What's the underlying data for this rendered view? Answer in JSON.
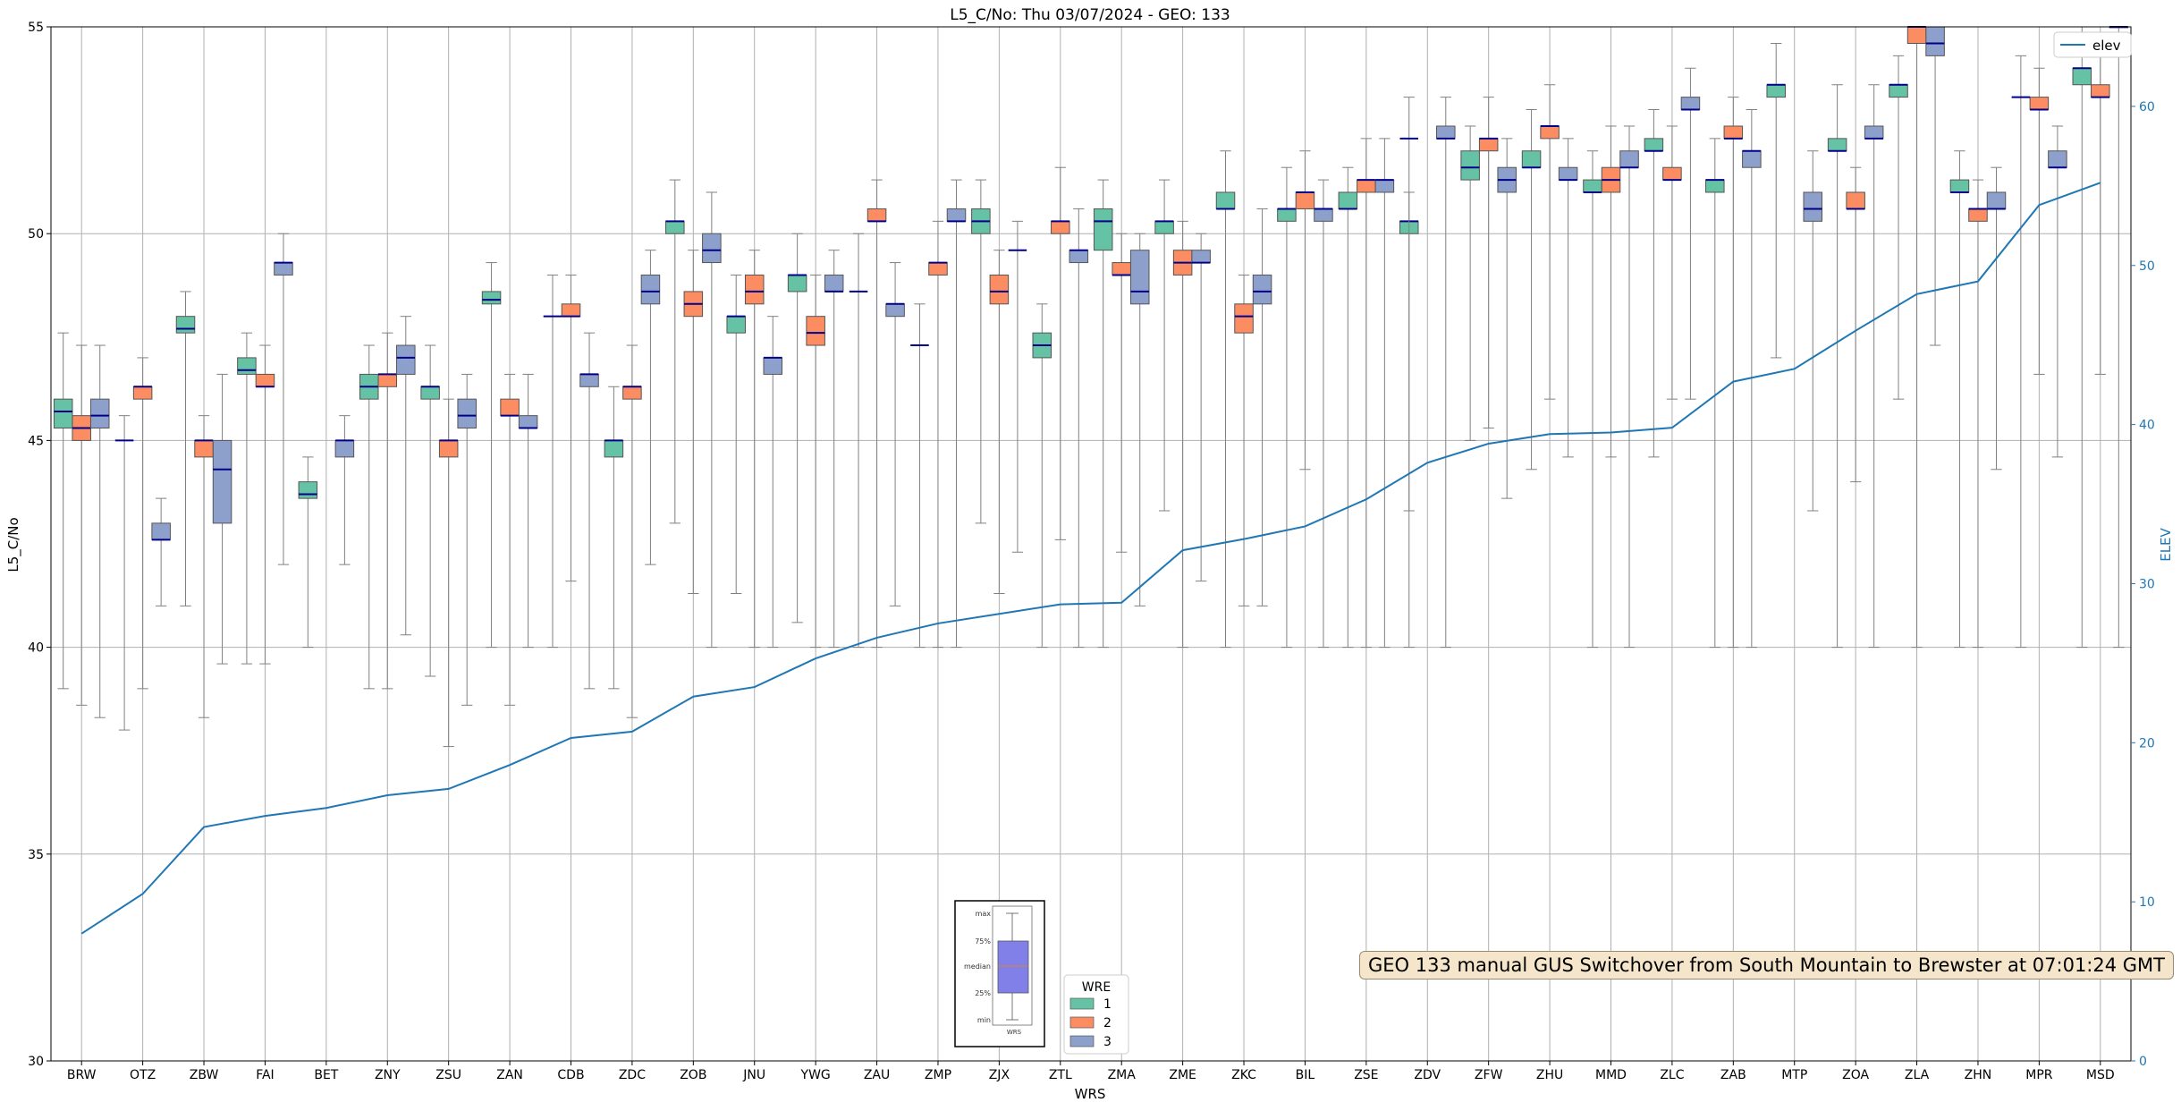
{
  "chart_data": {
    "type": "box",
    "title": "L5_C/No: Thu 03/07/2024 - GEO: 133",
    "xlabel": "WRS",
    "ylabel": "L5_C/No",
    "y2label": "ELEV",
    "ylim": [
      30,
      55
    ],
    "y2lim": [
      0,
      65
    ],
    "yticks": [
      30,
      35,
      40,
      45,
      50,
      55
    ],
    "y2ticks": [
      0,
      10,
      20,
      30,
      40,
      50,
      60
    ],
    "grid": true,
    "categories": [
      "BRW",
      "OTZ",
      "ZBW",
      "FAI",
      "BET",
      "ZNY",
      "ZSU",
      "ZAN",
      "CDB",
      "ZDC",
      "ZOB",
      "JNU",
      "YWG",
      "ZAU",
      "ZMP",
      "ZJX",
      "ZTL",
      "ZMA",
      "ZME",
      "ZKC",
      "BIL",
      "ZSE",
      "ZDV",
      "ZFW",
      "ZHU",
      "MMD",
      "ZLC",
      "ZAB",
      "MTP",
      "ZOA",
      "ZLA",
      "ZHN",
      "MPR",
      "MSD"
    ],
    "legend": {
      "title": "WRE",
      "entries": [
        "1",
        "2",
        "3"
      ],
      "placement": "lower-center"
    },
    "line_legend": {
      "label": "elev",
      "placement": "top-right"
    },
    "colors": {
      "wre1": "#66c2a5",
      "wre2": "#fc8d62",
      "wre3": "#8da0cb",
      "median": "#00008b",
      "elev": "#1f77b4",
      "whisker": "#808080",
      "note_bg": "#f5e6cb"
    },
    "series": [
      {
        "name": "1",
        "boxes": [
          {
            "min": 39.0,
            "q1": 45.3,
            "median": 45.7,
            "q3": 46.0,
            "max": 47.6
          },
          null,
          {
            "min": 41.0,
            "q1": 47.6,
            "median": 47.7,
            "q3": 48.0,
            "max": 48.6
          },
          {
            "min": 39.6,
            "q1": 46.6,
            "median": 46.7,
            "q3": 47.0,
            "max": 47.6
          },
          {
            "min": 40.0,
            "q1": 43.6,
            "median": 43.7,
            "q3": 44.0,
            "max": 44.6
          },
          {
            "min": 39.0,
            "q1": 46.0,
            "median": 46.3,
            "q3": 46.6,
            "max": 47.3
          },
          {
            "min": 39.3,
            "q1": 46.0,
            "median": 46.3,
            "q3": 46.3,
            "max": 47.3
          },
          {
            "min": 40.0,
            "q1": 48.3,
            "median": 48.4,
            "q3": 48.6,
            "max": 49.3
          },
          null,
          {
            "min": 39.0,
            "q1": 44.6,
            "median": 45.0,
            "q3": 45.0,
            "max": 46.3
          },
          {
            "min": 43.0,
            "q1": 50.0,
            "median": 50.3,
            "q3": 50.3,
            "max": 51.3
          },
          {
            "min": 41.3,
            "q1": 47.6,
            "median": 48.0,
            "q3": 48.0,
            "max": 49.0
          },
          {
            "min": 40.6,
            "q1": 48.6,
            "median": 49.0,
            "q3": 49.0,
            "max": 50.0
          },
          null,
          null,
          {
            "min": 43.0,
            "q1": 50.0,
            "median": 50.3,
            "q3": 50.6,
            "max": 51.3
          },
          {
            "min": 40.0,
            "q1": 47.0,
            "median": 47.3,
            "q3": 47.6,
            "max": 48.3
          },
          {
            "min": 40.0,
            "q1": 49.6,
            "median": 50.3,
            "q3": 50.6,
            "max": 51.3
          },
          {
            "min": 43.3,
            "q1": 50.0,
            "median": 50.3,
            "q3": 50.3,
            "max": 51.3
          },
          {
            "min": 40.0,
            "q1": 50.6,
            "median": 50.6,
            "q3": 51.0,
            "max": 52.0
          },
          {
            "min": 40.0,
            "q1": 50.3,
            "median": 50.6,
            "q3": 50.6,
            "max": 51.6
          },
          {
            "min": 40.0,
            "q1": 50.6,
            "median": 50.6,
            "q3": 51.0,
            "max": 51.6
          },
          {
            "min": 43.3,
            "q1": 50.0,
            "median": 50.3,
            "q3": 50.3,
            "max": 51.0
          },
          {
            "min": 45.0,
            "q1": 51.3,
            "median": 51.6,
            "q3": 52.0,
            "max": 52.6
          },
          {
            "min": 44.3,
            "q1": 51.6,
            "median": 51.6,
            "q3": 52.0,
            "max": 53.0
          },
          {
            "min": 40.0,
            "q1": 51.0,
            "median": 51.0,
            "q3": 51.3,
            "max": 52.0
          },
          {
            "min": 44.6,
            "q1": 52.0,
            "median": 52.0,
            "q3": 52.3,
            "max": 53.0
          },
          {
            "min": 40.0,
            "q1": 51.0,
            "median": 51.3,
            "q3": 51.3,
            "max": 52.3
          },
          {
            "min": 47.0,
            "q1": 53.3,
            "median": 53.6,
            "q3": 53.6,
            "max": 54.6
          },
          {
            "min": 40.0,
            "q1": 52.0,
            "median": 52.0,
            "q3": 52.3,
            "max": 53.6
          },
          {
            "min": 46.0,
            "q1": 53.3,
            "median": 53.6,
            "q3": 53.6,
            "max": 54.3
          },
          {
            "min": 40.0,
            "q1": 51.0,
            "median": 51.0,
            "q3": 51.3,
            "max": 52.0
          },
          null,
          {
            "min": 40.0,
            "q1": 53.6,
            "median": 54.0,
            "q3": 54.0,
            "max": 55.0
          }
        ]
      },
      {
        "name": "2",
        "boxes": [
          {
            "min": 38.6,
            "q1": 45.0,
            "median": 45.3,
            "q3": 45.6,
            "max": 47.3
          },
          {
            "min": 39.0,
            "q1": 46.0,
            "median": 46.3,
            "q3": 46.3,
            "max": 47.0
          },
          {
            "min": 38.3,
            "q1": 44.6,
            "median": 45.0,
            "q3": 45.0,
            "max": 45.6
          },
          {
            "min": 39.6,
            "q1": 46.3,
            "median": 46.3,
            "q3": 46.6,
            "max": 47.3
          },
          null,
          {
            "min": 39.0,
            "q1": 46.3,
            "median": 46.6,
            "q3": 46.6,
            "max": 47.6
          },
          {
            "min": 37.6,
            "q1": 44.6,
            "median": 45.0,
            "q3": 45.0,
            "max": 46.0
          },
          {
            "min": 38.6,
            "q1": 45.6,
            "median": 45.6,
            "q3": 46.0,
            "max": 46.6
          },
          {
            "min": 41.6,
            "q1": 48.0,
            "median": 48.0,
            "q3": 48.3,
            "max": 49.0
          },
          {
            "min": 38.3,
            "q1": 46.0,
            "median": 46.3,
            "q3": 46.3,
            "max": 47.3
          },
          {
            "min": 41.3,
            "q1": 48.0,
            "median": 48.3,
            "q3": 48.6,
            "max": 49.6
          },
          {
            "min": 40.0,
            "q1": 48.3,
            "median": 48.6,
            "q3": 49.0,
            "max": 49.6
          },
          {
            "min": 40.0,
            "q1": 47.3,
            "median": 47.6,
            "q3": 48.0,
            "max": 49.0
          },
          {
            "min": 40.0,
            "q1": 50.3,
            "median": 50.3,
            "q3": 50.6,
            "max": 51.3
          },
          {
            "min": 40.0,
            "q1": 49.0,
            "median": 49.3,
            "q3": 49.3,
            "max": 50.3
          },
          {
            "min": 41.3,
            "q1": 48.3,
            "median": 48.6,
            "q3": 49.0,
            "max": 49.6
          },
          {
            "min": 42.6,
            "q1": 50.0,
            "median": 50.3,
            "q3": 50.3,
            "max": 51.6
          },
          {
            "min": 42.3,
            "q1": 49.0,
            "median": 49.0,
            "q3": 49.3,
            "max": 50.0
          },
          {
            "min": 40.0,
            "q1": 49.0,
            "median": 49.3,
            "q3": 49.6,
            "max": 50.3
          },
          {
            "min": 41.0,
            "q1": 47.6,
            "median": 48.0,
            "q3": 48.3,
            "max": 49.0
          },
          {
            "min": 44.3,
            "q1": 50.6,
            "median": 51.0,
            "q3": 51.0,
            "max": 52.0
          },
          {
            "min": 40.0,
            "q1": 51.0,
            "median": 51.3,
            "q3": 51.3,
            "max": 52.3
          },
          null,
          {
            "min": 45.3,
            "q1": 52.0,
            "median": 52.3,
            "q3": 52.3,
            "max": 53.3
          },
          {
            "min": 46.0,
            "q1": 52.3,
            "median": 52.6,
            "q3": 52.6,
            "max": 53.6
          },
          {
            "min": 44.6,
            "q1": 51.0,
            "median": 51.3,
            "q3": 51.6,
            "max": 52.6
          },
          {
            "min": 46.0,
            "q1": 51.3,
            "median": 51.3,
            "q3": 51.6,
            "max": 52.6
          },
          {
            "min": 40.0,
            "q1": 52.3,
            "median": 52.3,
            "q3": 52.6,
            "max": 53.3
          },
          null,
          {
            "min": 44.0,
            "q1": 50.6,
            "median": 50.6,
            "q3": 51.0,
            "max": 51.6
          },
          {
            "min": 40.0,
            "q1": 54.6,
            "median": 55.0,
            "q3": 55.0,
            "max": 55.0
          },
          {
            "min": 40.0,
            "q1": 50.3,
            "median": 50.6,
            "q3": 50.6,
            "max": 51.3
          },
          {
            "min": 46.6,
            "q1": 53.0,
            "median": 53.0,
            "q3": 53.3,
            "max": 54.0
          },
          {
            "min": 46.6,
            "q1": 53.3,
            "median": 53.3,
            "q3": 53.6,
            "max": 54.6
          }
        ]
      },
      {
        "name": "3",
        "boxes": [
          {
            "min": 38.3,
            "q1": 45.3,
            "median": 45.6,
            "q3": 46.0,
            "max": 47.3
          },
          {
            "min": 41.0,
            "q1": 42.6,
            "median": 42.6,
            "q3": 43.0,
            "max": 43.6
          },
          {
            "min": 39.6,
            "q1": 43.0,
            "median": 44.3,
            "q3": 45.0,
            "max": 46.6
          },
          {
            "min": 42.0,
            "q1": 49.0,
            "median": 49.3,
            "q3": 49.3,
            "max": 50.0
          },
          {
            "min": 42.0,
            "q1": 44.6,
            "median": 45.0,
            "q3": 45.0,
            "max": 45.6
          },
          {
            "min": 40.3,
            "q1": 46.6,
            "median": 47.0,
            "q3": 47.3,
            "max": 48.0
          },
          {
            "min": 38.6,
            "q1": 45.3,
            "median": 45.6,
            "q3": 46.0,
            "max": 46.6
          },
          {
            "min": 40.0,
            "q1": 45.3,
            "median": 45.3,
            "q3": 45.6,
            "max": 46.6
          },
          {
            "min": 39.0,
            "q1": 46.3,
            "median": 46.6,
            "q3": 46.6,
            "max": 47.6
          },
          {
            "min": 42.0,
            "q1": 48.3,
            "median": 48.6,
            "q3": 49.0,
            "max": 49.6
          },
          {
            "min": 40.0,
            "q1": 49.3,
            "median": 49.6,
            "q3": 50.0,
            "max": 51.0
          },
          {
            "min": 40.0,
            "q1": 46.6,
            "median": 47.0,
            "q3": 47.0,
            "max": 48.0
          },
          {
            "min": 40.0,
            "q1": 48.6,
            "median": 48.6,
            "q3": 49.0,
            "max": 49.6
          },
          {
            "min": 41.0,
            "q1": 48.0,
            "median": 48.3,
            "q3": 48.3,
            "max": 49.3
          },
          {
            "min": 40.0,
            "q1": 50.3,
            "median": 50.3,
            "q3": 50.6,
            "max": 51.3
          },
          null,
          {
            "min": 40.0,
            "q1": 49.3,
            "median": 49.6,
            "q3": 49.6,
            "max": 50.6
          },
          {
            "min": 41.0,
            "q1": 48.3,
            "median": 48.6,
            "q3": 49.6,
            "max": 50.0
          },
          {
            "min": 41.6,
            "q1": 49.3,
            "median": 49.3,
            "q3": 49.6,
            "max": 50.0
          },
          {
            "min": 41.0,
            "q1": 48.3,
            "median": 48.6,
            "q3": 49.0,
            "max": 50.6
          },
          {
            "min": 40.0,
            "q1": 50.3,
            "median": 50.6,
            "q3": 50.6,
            "max": 51.3
          },
          {
            "min": 40.0,
            "q1": 51.0,
            "median": 51.3,
            "q3": 51.3,
            "max": 52.3
          },
          {
            "min": 40.0,
            "q1": 52.3,
            "median": 52.3,
            "q3": 52.6,
            "max": 53.3
          },
          {
            "min": 43.6,
            "q1": 51.0,
            "median": 51.3,
            "q3": 51.6,
            "max": 52.3
          },
          {
            "min": 44.6,
            "q1": 51.3,
            "median": 51.3,
            "q3": 51.6,
            "max": 52.3
          },
          {
            "min": 40.0,
            "q1": 51.6,
            "median": 51.6,
            "q3": 52.0,
            "max": 52.6
          },
          {
            "min": 46.0,
            "q1": 53.0,
            "median": 53.0,
            "q3": 53.3,
            "max": 54.0
          },
          {
            "min": 40.0,
            "q1": 51.6,
            "median": 52.0,
            "q3": 52.0,
            "max": 53.0
          },
          {
            "min": 43.3,
            "q1": 50.3,
            "median": 50.6,
            "q3": 51.0,
            "max": 52.0
          },
          {
            "min": 40.0,
            "q1": 52.3,
            "median": 52.3,
            "q3": 52.6,
            "max": 53.6
          },
          {
            "min": 47.3,
            "q1": 54.3,
            "median": 54.6,
            "q3": 55.0,
            "max": 55.0
          },
          {
            "min": 44.3,
            "q1": 50.6,
            "median": 50.6,
            "q3": 51.0,
            "max": 51.6
          },
          {
            "min": 44.6,
            "q1": 51.6,
            "median": 51.6,
            "q3": 52.0,
            "max": 52.6
          },
          {
            "min": 40.0,
            "q1": 55.0,
            "median": 55.0,
            "q3": 55.0,
            "max": 55.0
          }
        ]
      }
    ],
    "flat_markers": [
      {
        "category": "OTZ",
        "wre": "1",
        "value": 45.0,
        "min": 38.0,
        "max": 45.6
      },
      {
        "category": "CDB",
        "wre": "1",
        "value": 48.0,
        "min": 40.0,
        "max": 49.0
      },
      {
        "category": "ZAU",
        "wre": "1",
        "value": 48.6,
        "min": 40.0,
        "max": 50.0
      },
      {
        "category": "ZMP",
        "wre": "1",
        "value": 47.3,
        "min": 40.0,
        "max": 48.3
      },
      {
        "category": "ZJX",
        "wre": "3",
        "value": 49.6,
        "min": 42.3,
        "max": 50.3
      },
      {
        "category": "ZDV",
        "wre": "1",
        "value": 52.3,
        "min": 40.0,
        "max": 53.3
      },
      {
        "category": "MPR",
        "wre": "1",
        "value": 53.3,
        "min": 40.0,
        "max": 54.3
      }
    ],
    "elev": {
      "name": "elev",
      "values": [
        8.0,
        10.5,
        14.7,
        15.4,
        15.9,
        16.7,
        17.1,
        18.6,
        20.3,
        20.7,
        22.9,
        23.5,
        25.3,
        26.6,
        27.5,
        28.1,
        28.7,
        28.8,
        32.1,
        32.8,
        33.6,
        35.3,
        37.6,
        38.8,
        39.4,
        39.5,
        39.8,
        42.7,
        43.5,
        45.9,
        48.2,
        49.0,
        53.8,
        55.2
      ]
    }
  },
  "annotation": {
    "text": "GEO 133 manual GUS Switchover from South Mountain to Brewster at 07:01:24 GMT"
  },
  "inset_labels": {
    "max": "max",
    "q3": "75%",
    "median": "median",
    "q1": "25%",
    "min": "min",
    "xlabel": "WRS"
  }
}
